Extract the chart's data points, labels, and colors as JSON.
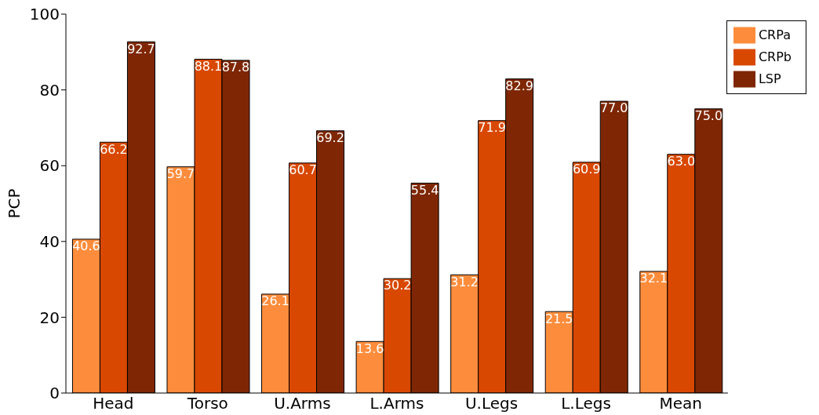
{
  "chart_data": {
    "type": "bar",
    "ylabel": "PCP",
    "categories": [
      "Head",
      "Torso",
      "U.Arms",
      "L.Arms",
      "U.Legs",
      "L.Legs",
      "Mean"
    ],
    "series": [
      {
        "name": "CRPa",
        "color": "#fd8d3c",
        "values": [
          40.6,
          59.7,
          26.1,
          13.6,
          31.2,
          21.5,
          32.1
        ],
        "value_labels": [
          "40.6",
          "59.7",
          "26.1",
          "13.6",
          "31.2",
          "21.5",
          "32.1"
        ]
      },
      {
        "name": "CRPb",
        "color": "#d94801",
        "values": [
          66.2,
          88.1,
          60.7,
          30.2,
          71.9,
          60.9,
          63.0
        ],
        "value_labels": [
          "66.2",
          "88.1",
          "60.7",
          "30.2",
          "71.9",
          "60.9",
          "63.0"
        ]
      },
      {
        "name": "LSP",
        "color": "#7f2704",
        "values": [
          92.7,
          87.8,
          69.2,
          55.4,
          82.9,
          77.0,
          75.0
        ],
        "value_labels": [
          "92.7",
          "87.8",
          "69.2",
          "55.4",
          "82.9",
          "77.0",
          "75.0"
        ]
      }
    ],
    "ylim": [
      0,
      100
    ],
    "yticks": [
      0,
      20,
      40,
      60,
      80,
      100
    ],
    "grid": false,
    "legend": "top right"
  }
}
